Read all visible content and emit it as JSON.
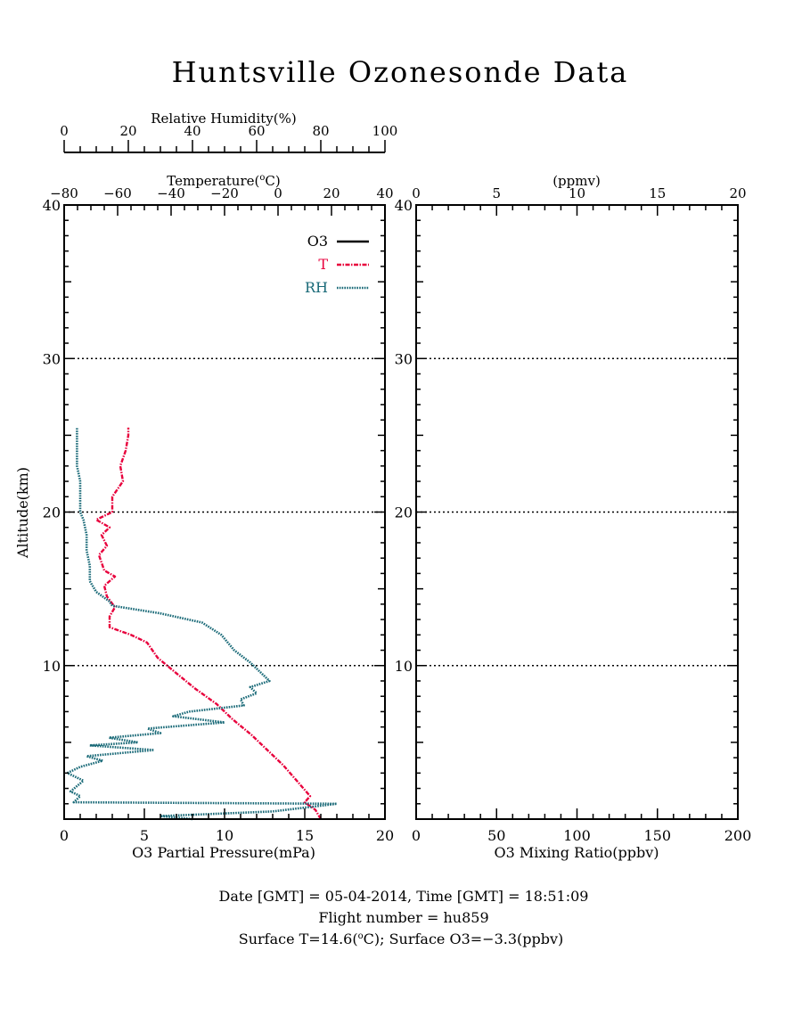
{
  "title": "Huntsville Ozonesonde Data",
  "colors": {
    "o3": "#000000",
    "t": "#e8003c",
    "rh": "#1a6a78",
    "axis": "#000000"
  },
  "left_panel": {
    "top_axis_rh_label": "Relative Humidity(%)",
    "top_axis_temp_label": "Temperature(",
    "temp_label_sup": "o",
    "temp_label_tail": "C)",
    "rh_ticks": [
      "0",
      "20",
      "40",
      "60",
      "80",
      "100"
    ],
    "temp_ticks": [
      "−80",
      "−60",
      "−40",
      "−20",
      "0",
      "20",
      "40"
    ],
    "y_label": "Altitude(km)",
    "x_label": "O3 Partial Pressure(mPa)",
    "x_ticks": [
      "0",
      "5",
      "10",
      "15",
      "20"
    ],
    "y_ticks": [
      "10",
      "20",
      "30",
      "40"
    ],
    "legend": [
      {
        "label": "O3",
        "series": "o3"
      },
      {
        "label": "T",
        "series": "t"
      },
      {
        "label": "RH",
        "series": "rh"
      }
    ]
  },
  "right_panel": {
    "top_label": "(ppmv)",
    "top_ticks": [
      "0",
      "5",
      "10",
      "15",
      "20"
    ],
    "x_label": "O3 Mixing Ratio(ppbv)",
    "x_ticks": [
      "0",
      "50",
      "100",
      "150",
      "200"
    ],
    "y_ticks": [
      "10",
      "20",
      "30",
      "40"
    ]
  },
  "footer": {
    "line1": "Date [GMT] = 05-04-2014,  Time [GMT] = 18:51:09",
    "line2": "Flight number = hu859",
    "line3_pre": "Surface T=14.6(",
    "line3_sup": "o",
    "line3_post": "C); Surface O3=−3.3(ppbv)"
  },
  "chart_data": [
    {
      "type": "line",
      "panel": "left",
      "ylabel": "Altitude(km)",
      "ylim": [
        0,
        40
      ],
      "xlim_o3_mPa": [
        0,
        20
      ],
      "xlim_temperature_C": [
        -80,
        40
      ],
      "xlim_rh_percent": [
        0,
        100
      ],
      "grid": "dotted horizontal at 10, 20, 30 km",
      "legend_position": "top-right",
      "series": [
        {
          "name": "T",
          "axis": "temperature",
          "points": [
            [
              16,
              0
            ],
            [
              14,
              0.6
            ],
            [
              10,
              1.1
            ],
            [
              12,
              1.5
            ],
            [
              7,
              2.5
            ],
            [
              2,
              3.5
            ],
            [
              -4,
              4.5
            ],
            [
              -10,
              5.5
            ],
            [
              -17,
              6.5
            ],
            [
              -23,
              7.5
            ],
            [
              -31,
              8.5
            ],
            [
              -38,
              9.5
            ],
            [
              -45,
              10.5
            ],
            [
              -49,
              11.5
            ],
            [
              -55,
              12
            ],
            [
              -63,
              12.5
            ],
            [
              -63,
              13.2
            ],
            [
              -61,
              13.8
            ],
            [
              -64,
              14.5
            ],
            [
              -65,
              15.2
            ],
            [
              -61,
              15.8
            ],
            [
              -65,
              16.2
            ],
            [
              -67,
              17.2
            ],
            [
              -64,
              17.8
            ],
            [
              -66,
              18.5
            ],
            [
              -63,
              19
            ],
            [
              -68,
              19.5
            ],
            [
              -62,
              20
            ],
            [
              -62,
              21
            ],
            [
              -58,
              22
            ],
            [
              -59,
              23
            ],
            [
              -57,
              24
            ],
            [
              -56,
              25
            ],
            [
              -56,
              25.5
            ]
          ]
        },
        {
          "name": "RH",
          "axis": "rh",
          "points": [
            [
              40,
              0
            ],
            [
              30,
              0.2
            ],
            [
              65,
              0.5
            ],
            [
              85,
              1.0
            ],
            [
              3,
              1.1
            ],
            [
              5,
              1.5
            ],
            [
              2,
              1.8
            ],
            [
              6,
              2.5
            ],
            [
              1,
              3.0
            ],
            [
              5,
              3.4
            ],
            [
              12,
              3.8
            ],
            [
              7,
              4.1
            ],
            [
              28,
              4.5
            ],
            [
              8,
              4.8
            ],
            [
              23,
              5.0
            ],
            [
              14,
              5.3
            ],
            [
              30,
              5.6
            ],
            [
              26,
              5.9
            ],
            [
              50,
              6.3
            ],
            [
              34,
              6.7
            ],
            [
              39,
              7.0
            ],
            [
              56,
              7.4
            ],
            [
              55,
              7.8
            ],
            [
              60,
              8.2
            ],
            [
              58,
              8.6
            ],
            [
              64,
              9.0
            ],
            [
              61,
              9.6
            ],
            [
              58,
              10.2
            ],
            [
              53,
              11.0
            ],
            [
              49,
              12.0
            ],
            [
              43,
              12.8
            ],
            [
              30,
              13.4
            ],
            [
              15,
              13.9
            ],
            [
              14,
              14.2
            ],
            [
              10,
              14.8
            ],
            [
              8,
              15.5
            ],
            [
              8,
              16.5
            ],
            [
              7,
              17.5
            ],
            [
              7,
              18.5
            ],
            [
              6,
              19.5
            ],
            [
              5,
              20.0
            ],
            [
              5,
              21.0
            ],
            [
              5,
              22.0
            ],
            [
              4,
              23.0
            ],
            [
              4,
              24.0
            ],
            [
              4,
              25.0
            ],
            [
              4,
              25.5
            ]
          ]
        },
        {
          "name": "O3",
          "axis": "o3",
          "points": []
        }
      ]
    },
    {
      "type": "line",
      "panel": "right",
      "xlabel": "O3 Mixing Ratio(ppbv)",
      "xlim_ppbv": [
        0,
        200
      ],
      "xlim_ppmv": [
        0,
        20
      ],
      "ylim": [
        0,
        40
      ],
      "grid": "dotted horizontal at 10, 20, 30 km",
      "series": []
    }
  ]
}
